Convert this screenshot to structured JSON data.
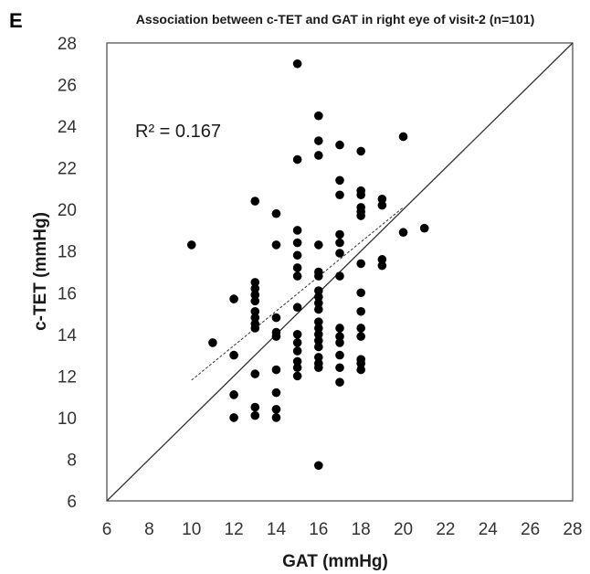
{
  "panel_label": "E",
  "chart_data": {
    "type": "scatter",
    "title": "Association between c-TET and GAT in right eye of visit-2 (n=101)",
    "xlabel": "GAT (mmHg)",
    "ylabel": "c-TET  (mmHg)",
    "xlim": [
      6,
      28
    ],
    "ylim": [
      6,
      28
    ],
    "xticks": [
      "6",
      "8",
      "10",
      "12",
      "14",
      "16",
      "18",
      "20",
      "22",
      "24",
      "26",
      "28"
    ],
    "yticks": [
      "6",
      "8",
      "10",
      "12",
      "14",
      "16",
      "18",
      "20",
      "22",
      "24",
      "26",
      "28"
    ],
    "annotation": "R² = 0.167",
    "grid": false,
    "marker_color": "#000000",
    "points": [
      {
        "x": 10,
        "y": 18.3
      },
      {
        "x": 11,
        "y": 13.6
      },
      {
        "x": 12,
        "y": 15.7
      },
      {
        "x": 12,
        "y": 13.0
      },
      {
        "x": 12,
        "y": 11.1
      },
      {
        "x": 12,
        "y": 10.0
      },
      {
        "x": 13,
        "y": 20.4
      },
      {
        "x": 13,
        "y": 16.5
      },
      {
        "x": 13,
        "y": 16.2
      },
      {
        "x": 13,
        "y": 15.9
      },
      {
        "x": 13,
        "y": 15.6
      },
      {
        "x": 13,
        "y": 15.1
      },
      {
        "x": 13,
        "y": 14.8
      },
      {
        "x": 13,
        "y": 14.5
      },
      {
        "x": 13,
        "y": 14.3
      },
      {
        "x": 13,
        "y": 12.1
      },
      {
        "x": 13,
        "y": 10.5
      },
      {
        "x": 13,
        "y": 10.1
      },
      {
        "x": 14,
        "y": 19.8
      },
      {
        "x": 14,
        "y": 18.3
      },
      {
        "x": 14,
        "y": 14.8
      },
      {
        "x": 14,
        "y": 14.1
      },
      {
        "x": 14,
        "y": 13.9
      },
      {
        "x": 14,
        "y": 12.3
      },
      {
        "x": 14,
        "y": 11.2
      },
      {
        "x": 14,
        "y": 10.4
      },
      {
        "x": 14,
        "y": 10.0
      },
      {
        "x": 15,
        "y": 27.0
      },
      {
        "x": 15,
        "y": 22.4
      },
      {
        "x": 15,
        "y": 19.0
      },
      {
        "x": 15,
        "y": 18.4
      },
      {
        "x": 15,
        "y": 17.8
      },
      {
        "x": 15,
        "y": 17.2
      },
      {
        "x": 15,
        "y": 16.8
      },
      {
        "x": 15,
        "y": 15.3
      },
      {
        "x": 15,
        "y": 14.0
      },
      {
        "x": 15,
        "y": 13.6
      },
      {
        "x": 15,
        "y": 13.2
      },
      {
        "x": 15,
        "y": 12.7
      },
      {
        "x": 15,
        "y": 12.4
      },
      {
        "x": 15,
        "y": 12.0
      },
      {
        "x": 16,
        "y": 24.5
      },
      {
        "x": 16,
        "y": 23.3
      },
      {
        "x": 16,
        "y": 22.6
      },
      {
        "x": 16,
        "y": 18.3
      },
      {
        "x": 16,
        "y": 17.0
      },
      {
        "x": 16,
        "y": 16.8
      },
      {
        "x": 16,
        "y": 16.1
      },
      {
        "x": 16,
        "y": 15.8
      },
      {
        "x": 16,
        "y": 15.5
      },
      {
        "x": 16,
        "y": 15.2
      },
      {
        "x": 16,
        "y": 14.6
      },
      {
        "x": 16,
        "y": 14.3
      },
      {
        "x": 16,
        "y": 14.0
      },
      {
        "x": 16,
        "y": 13.7
      },
      {
        "x": 16,
        "y": 13.4
      },
      {
        "x": 16,
        "y": 12.9
      },
      {
        "x": 16,
        "y": 12.6
      },
      {
        "x": 16,
        "y": 12.4
      },
      {
        "x": 16,
        "y": 7.7
      },
      {
        "x": 17,
        "y": 23.1
      },
      {
        "x": 17,
        "y": 21.4
      },
      {
        "x": 17,
        "y": 20.7
      },
      {
        "x": 17,
        "y": 18.8
      },
      {
        "x": 17,
        "y": 18.4
      },
      {
        "x": 17,
        "y": 17.9
      },
      {
        "x": 17,
        "y": 16.8
      },
      {
        "x": 17,
        "y": 14.3
      },
      {
        "x": 17,
        "y": 13.9
      },
      {
        "x": 17,
        "y": 13.6
      },
      {
        "x": 17,
        "y": 13.0
      },
      {
        "x": 17,
        "y": 12.4
      },
      {
        "x": 17,
        "y": 11.7
      },
      {
        "x": 18,
        "y": 22.8
      },
      {
        "x": 18,
        "y": 20.9
      },
      {
        "x": 18,
        "y": 20.7
      },
      {
        "x": 18,
        "y": 20.1
      },
      {
        "x": 18,
        "y": 19.9
      },
      {
        "x": 18,
        "y": 19.7
      },
      {
        "x": 18,
        "y": 17.4
      },
      {
        "x": 18,
        "y": 16.0
      },
      {
        "x": 18,
        "y": 15.1
      },
      {
        "x": 18,
        "y": 14.3
      },
      {
        "x": 18,
        "y": 13.9
      },
      {
        "x": 18,
        "y": 12.8
      },
      {
        "x": 18,
        "y": 12.6
      },
      {
        "x": 18,
        "y": 12.3
      },
      {
        "x": 19,
        "y": 20.5
      },
      {
        "x": 19,
        "y": 20.2
      },
      {
        "x": 19,
        "y": 17.6
      },
      {
        "x": 19,
        "y": 17.3
      },
      {
        "x": 20,
        "y": 23.5
      },
      {
        "x": 20,
        "y": 18.9
      },
      {
        "x": 21,
        "y": 19.1
      }
    ],
    "identity_line": {
      "from": [
        6,
        6
      ],
      "to": [
        28,
        28
      ]
    },
    "trendline": {
      "from": [
        10,
        11.8
      ],
      "to": [
        20,
        20.1
      ],
      "style": "dashed"
    }
  }
}
